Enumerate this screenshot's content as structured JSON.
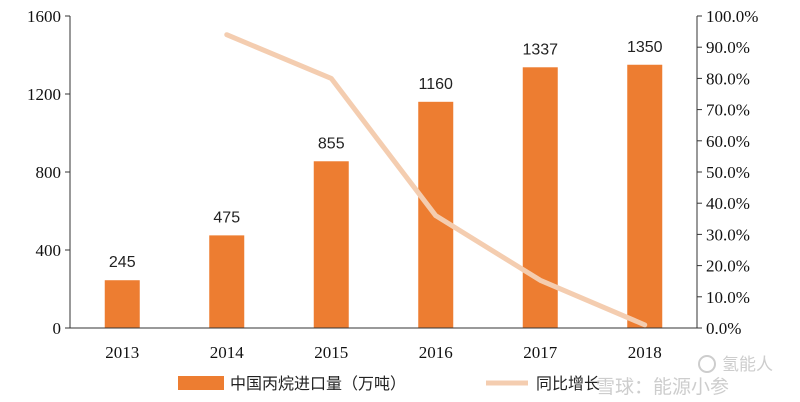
{
  "chart_data": {
    "type": "bar",
    "categories": [
      "2013",
      "2014",
      "2015",
      "2016",
      "2017",
      "2018"
    ],
    "series": [
      {
        "name": "中国丙烷进口量（万吨）",
        "type": "bar",
        "axis": "left",
        "values": [
          245,
          475,
          855,
          1160,
          1337,
          1350
        ],
        "data_labels": [
          "245",
          "475",
          "855",
          "1160",
          "1337",
          "1350"
        ],
        "color": "#ed7d31"
      },
      {
        "name": "同比增长",
        "type": "line",
        "axis": "right",
        "values": [
          null,
          94.0,
          80.0,
          36.0,
          15.3,
          1.0
        ],
        "color": "#f4cdb0"
      }
    ],
    "y_left": {
      "lim": [
        0,
        1600
      ],
      "ticks": [
        0,
        400,
        800,
        1200,
        1600
      ],
      "tick_labels": [
        "0",
        "400",
        "800",
        "1200",
        "1600"
      ]
    },
    "y_right": {
      "lim": [
        0,
        100
      ],
      "ticks": [
        0,
        10,
        20,
        30,
        40,
        50,
        60,
        70,
        80,
        90,
        100
      ],
      "tick_labels": [
        "0.0%",
        "10.0%",
        "20.0%",
        "30.0%",
        "40.0%",
        "50.0%",
        "60.0%",
        "70.0%",
        "80.0%",
        "90.0%",
        "100.0%"
      ]
    },
    "legend_position": "bottom",
    "grid": false
  },
  "watermark": {
    "line1": "氢能人",
    "line2": "雪球：能源小参"
  }
}
